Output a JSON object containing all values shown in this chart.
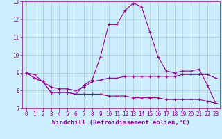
{
  "title": "",
  "xlabel": "Windchill (Refroidissement éolien,°C)",
  "ylabel": "",
  "background_color": "#cceeff",
  "line_color": "#990099",
  "xlim": [
    -0.5,
    23.5
  ],
  "ylim": [
    7,
    13
  ],
  "yticks": [
    7,
    8,
    9,
    10,
    11,
    12,
    13
  ],
  "xticks": [
    0,
    1,
    2,
    3,
    4,
    5,
    6,
    7,
    8,
    9,
    10,
    11,
    12,
    13,
    14,
    15,
    16,
    17,
    18,
    19,
    20,
    21,
    22,
    23
  ],
  "series1_x": [
    0,
    1,
    2,
    3,
    4,
    5,
    6,
    7,
    8,
    9,
    10,
    11,
    12,
    13,
    14,
    15,
    16,
    17,
    18,
    19,
    20,
    21,
    22,
    23
  ],
  "series1_y": [
    9.0,
    8.9,
    8.5,
    7.9,
    7.9,
    7.9,
    7.8,
    8.3,
    8.6,
    9.9,
    11.7,
    11.7,
    12.5,
    12.9,
    12.7,
    11.3,
    9.9,
    9.1,
    9.0,
    9.1,
    9.1,
    9.2,
    8.3,
    7.3
  ],
  "series2_x": [
    0,
    1,
    2,
    3,
    4,
    5,
    6,
    7,
    8,
    9,
    10,
    11,
    12,
    13,
    14,
    15,
    16,
    17,
    18,
    19,
    20,
    21,
    22,
    23
  ],
  "series2_y": [
    9.0,
    8.7,
    8.5,
    8.2,
    8.1,
    8.1,
    8.0,
    8.2,
    8.5,
    8.6,
    8.7,
    8.7,
    8.8,
    8.8,
    8.8,
    8.8,
    8.8,
    8.8,
    8.8,
    8.9,
    8.9,
    8.9,
    8.9,
    8.7
  ],
  "series3_x": [
    0,
    1,
    2,
    3,
    4,
    5,
    6,
    7,
    8,
    9,
    10,
    11,
    12,
    13,
    14,
    15,
    16,
    17,
    18,
    19,
    20,
    21,
    22,
    23
  ],
  "series3_y": [
    9.0,
    8.7,
    8.5,
    7.9,
    7.9,
    7.9,
    7.8,
    7.8,
    7.8,
    7.8,
    7.7,
    7.7,
    7.7,
    7.6,
    7.6,
    7.6,
    7.6,
    7.5,
    7.5,
    7.5,
    7.5,
    7.5,
    7.4,
    7.3
  ],
  "marker": "+",
  "markersize": 3,
  "linewidth": 0.8,
  "grid_color": "#aacccc",
  "xlabel_fontsize": 6.5,
  "tick_fontsize": 5.5
}
